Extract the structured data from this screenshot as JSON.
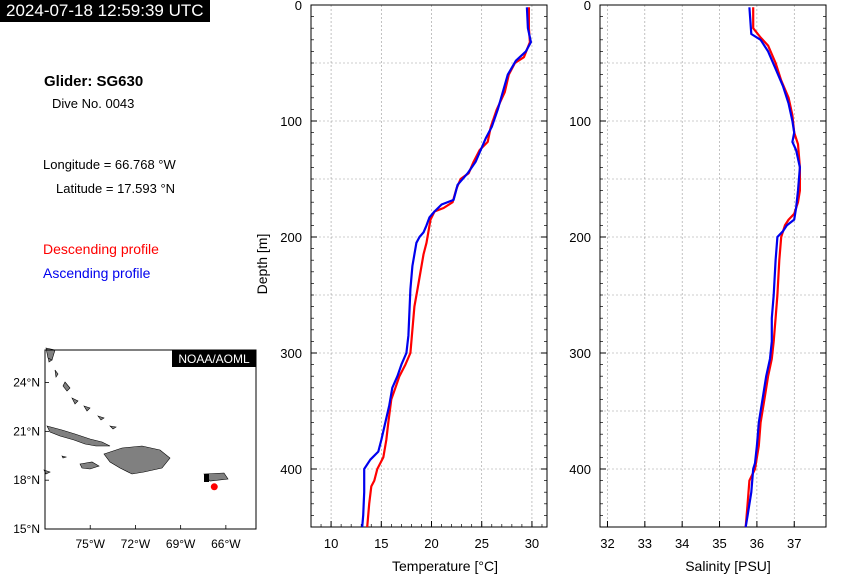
{
  "header": {
    "timestamp": "2024-07-18 12:59:39 UTC"
  },
  "info": {
    "glider": "Glider: SG630",
    "dive": "Dive No. 0043",
    "longitude": "Longitude = 66.768 °W",
    "latitude": "Latitude = 17.593 °N",
    "descending_label": "Descending profile",
    "ascending_label": "Ascending profile"
  },
  "colors": {
    "descending": "#ff0000",
    "ascending": "#0000ee",
    "land": "#808080"
  },
  "map": {
    "badge": "NOAA/AOML",
    "lat_ticks": [
      "24°N",
      "21°N",
      "18°N",
      "15°N"
    ],
    "lon_ticks": [
      "75°W",
      "72°W",
      "69°W",
      "66°W"
    ],
    "lon_range": [
      -78,
      -64
    ],
    "lat_range": [
      15,
      26
    ],
    "glider_position": {
      "lon": -66.768,
      "lat": 17.593
    }
  },
  "chart_data": [
    {
      "type": "line",
      "xlabel": "Temperature [°C]",
      "ylabel": "Depth [m]",
      "xlim": [
        8,
        31.5
      ],
      "ylim": [
        0,
        450
      ],
      "y_inverted": true,
      "grid": true,
      "xticks": [
        "10",
        "15",
        "20",
        "25",
        "30"
      ],
      "yticks": [
        "0",
        "100",
        "200",
        "300",
        "400"
      ],
      "series": [
        {
          "name": "Descending profile",
          "color": "#ff0000",
          "points": [
            [
              29.7,
              2
            ],
            [
              29.7,
              20
            ],
            [
              29.8,
              32
            ],
            [
              29.2,
              45
            ],
            [
              28.3,
              50
            ],
            [
              27.7,
              60
            ],
            [
              27.3,
              75
            ],
            [
              26.5,
              90
            ],
            [
              25.9,
              105
            ],
            [
              25.6,
              118
            ],
            [
              24.8,
              125
            ],
            [
              24.2,
              135
            ],
            [
              23.7,
              145
            ],
            [
              22.9,
              150
            ],
            [
              22.5,
              158
            ],
            [
              22.1,
              170
            ],
            [
              21.2,
              175
            ],
            [
              20.3,
              178
            ],
            [
              19.9,
              185
            ],
            [
              19.7,
              195
            ],
            [
              19.5,
              205
            ],
            [
              19.2,
              215
            ],
            [
              18.9,
              230
            ],
            [
              18.6,
              245
            ],
            [
              18.3,
              260
            ],
            [
              18.1,
              280
            ],
            [
              17.9,
              300
            ],
            [
              17.4,
              310
            ],
            [
              16.8,
              320
            ],
            [
              16.4,
              330
            ],
            [
              16.0,
              340
            ],
            [
              15.7,
              360
            ],
            [
              15.5,
              375
            ],
            [
              15.2,
              390
            ],
            [
              14.6,
              400
            ],
            [
              14.3,
              410
            ],
            [
              14.0,
              415
            ],
            [
              13.8,
              430
            ],
            [
              13.6,
              450
            ]
          ]
        },
        {
          "name": "Ascending profile",
          "color": "#0000ee",
          "points": [
            [
              29.5,
              2
            ],
            [
              29.6,
              20
            ],
            [
              29.9,
              32
            ],
            [
              29.4,
              40
            ],
            [
              28.4,
              48
            ],
            [
              27.6,
              60
            ],
            [
              27.1,
              75
            ],
            [
              26.6,
              90
            ],
            [
              26.0,
              105
            ],
            [
              25.4,
              115
            ],
            [
              24.9,
              125
            ],
            [
              24.4,
              135
            ],
            [
              23.6,
              145
            ],
            [
              22.6,
              155
            ],
            [
              22.2,
              168
            ],
            [
              21.0,
              172
            ],
            [
              20.3,
              178
            ],
            [
              19.8,
              183
            ],
            [
              19.5,
              190
            ],
            [
              19.2,
              196
            ],
            [
              18.8,
              200
            ],
            [
              18.5,
              205
            ],
            [
              18.1,
              225
            ],
            [
              17.9,
              245
            ],
            [
              17.8,
              265
            ],
            [
              17.7,
              285
            ],
            [
              17.5,
              300
            ],
            [
              17.0,
              310
            ],
            [
              16.6,
              320
            ],
            [
              16.1,
              330
            ],
            [
              15.8,
              345
            ],
            [
              15.4,
              360
            ],
            [
              15.0,
              375
            ],
            [
              14.7,
              385
            ],
            [
              13.9,
              392
            ],
            [
              13.3,
              400
            ],
            [
              13.3,
              420
            ],
            [
              13.2,
              440
            ],
            [
              13.1,
              450
            ]
          ]
        }
      ]
    },
    {
      "type": "line",
      "xlabel": "Salinity [PSU]",
      "ylabel": "",
      "xlim": [
        31.8,
        37.85
      ],
      "ylim": [
        0,
        450
      ],
      "y_inverted": true,
      "grid": true,
      "xticks": [
        "32",
        "33",
        "34",
        "35",
        "36",
        "37"
      ],
      "yticks": [
        "0",
        "100",
        "200",
        "300",
        "400"
      ],
      "series": [
        {
          "name": "Descending profile",
          "color": "#ff0000",
          "points": [
            [
              35.9,
              2
            ],
            [
              35.9,
              20
            ],
            [
              36.1,
              28
            ],
            [
              36.3,
              35
            ],
            [
              36.5,
              50
            ],
            [
              36.65,
              65
            ],
            [
              36.85,
              80
            ],
            [
              36.95,
              95
            ],
            [
              37.0,
              110
            ],
            [
              37.1,
              120
            ],
            [
              37.15,
              140
            ],
            [
              37.15,
              160
            ],
            [
              37.1,
              170
            ],
            [
              37.0,
              180
            ],
            [
              36.85,
              185
            ],
            [
              36.75,
              190
            ],
            [
              36.65,
              200
            ],
            [
              36.6,
              220
            ],
            [
              36.55,
              250
            ],
            [
              36.5,
              270
            ],
            [
              36.45,
              290
            ],
            [
              36.4,
              305
            ],
            [
              36.3,
              320
            ],
            [
              36.2,
              340
            ],
            [
              36.1,
              360
            ],
            [
              36.05,
              380
            ],
            [
              35.95,
              400
            ],
            [
              35.8,
              410
            ],
            [
              35.75,
              430
            ],
            [
              35.7,
              450
            ]
          ]
        },
        {
          "name": "Ascending profile",
          "color": "#0000ee",
          "points": [
            [
              35.8,
              2
            ],
            [
              35.85,
              25
            ],
            [
              36.1,
              30
            ],
            [
              36.3,
              40
            ],
            [
              36.5,
              55
            ],
            [
              36.7,
              70
            ],
            [
              36.85,
              85
            ],
            [
              36.95,
              100
            ],
            [
              37.0,
              110
            ],
            [
              36.95,
              118
            ],
            [
              37.05,
              125
            ],
            [
              37.15,
              140
            ],
            [
              37.1,
              160
            ],
            [
              37.05,
              175
            ],
            [
              37.0,
              185
            ],
            [
              36.8,
              190
            ],
            [
              36.7,
              195
            ],
            [
              36.55,
              200
            ],
            [
              36.5,
              220
            ],
            [
              36.45,
              250
            ],
            [
              36.4,
              270
            ],
            [
              36.4,
              290
            ],
            [
              36.35,
              305
            ],
            [
              36.25,
              320
            ],
            [
              36.15,
              340
            ],
            [
              36.05,
              360
            ],
            [
              36.0,
              380
            ],
            [
              35.95,
              395
            ],
            [
              35.9,
              400
            ],
            [
              35.85,
              420
            ],
            [
              35.75,
              440
            ],
            [
              35.7,
              450
            ]
          ]
        }
      ]
    }
  ]
}
